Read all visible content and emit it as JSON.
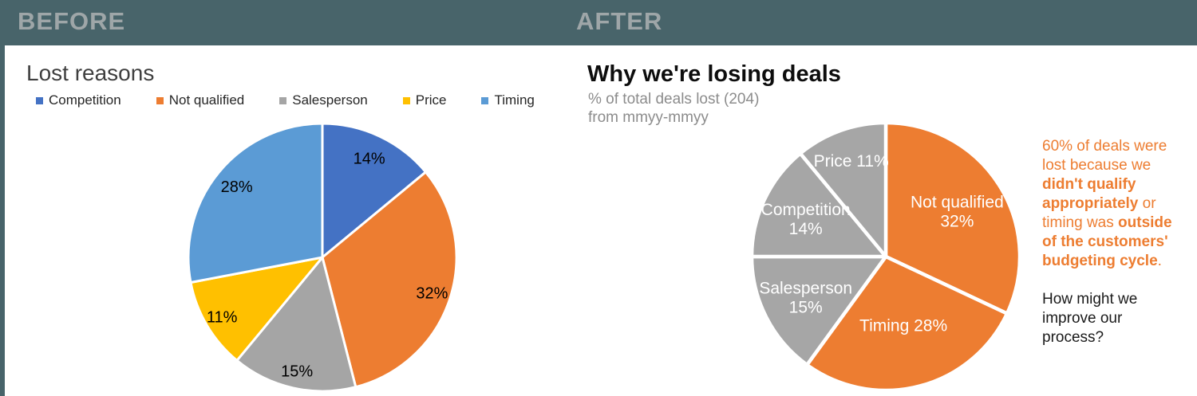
{
  "header": {
    "before_label": "BEFORE",
    "after_label": "AFTER",
    "bar_color": "#48646a",
    "label_color": "#9ea6a8"
  },
  "before_panel": {
    "title": "Lost reasons"
  },
  "after_panel": {
    "title": "Why we're losing deals",
    "subtitle": [
      "% of total deals lost (204)",
      "from mmyy-mmyy"
    ],
    "annotation": {
      "color": "#ED7D31",
      "segments": [
        {
          "text": "60% of deals were lost because we ",
          "bold": false
        },
        {
          "text": "didn't qualify appropriately",
          "bold": true
        },
        {
          "text": " or timing was ",
          "bold": false
        },
        {
          "text": "outside of the customers' budgeting cycle",
          "bold": true
        },
        {
          "text": ".",
          "bold": false
        }
      ],
      "question": "How might we improve our process?"
    }
  },
  "chart_data": [
    {
      "id": "before",
      "type": "pie",
      "title": "Lost reasons",
      "start_angle": 0,
      "direction": "clockwise-from-top",
      "legend_position": "top",
      "gap_stroke": 3,
      "label_color": "#000000",
      "label_size": 20,
      "label_line_height": 22,
      "slices": [
        {
          "label": "Competition",
          "value": 14,
          "color": "#4472C4",
          "data_label": "14%",
          "label_r": 0.82
        },
        {
          "label": "Not qualified",
          "value": 32,
          "color": "#ED7D31",
          "data_label": "32%",
          "label_r": 0.86
        },
        {
          "label": "Salesperson",
          "value": 15,
          "color": "#A5A5A5",
          "data_label": "15%",
          "label_r": 0.87
        },
        {
          "label": "Price",
          "value": 11,
          "color": "#FFC000",
          "data_label": "11%",
          "label_r": 0.87
        },
        {
          "label": "Timing",
          "value": 28,
          "color": "#5B9BD5",
          "data_label": "28%",
          "label_r": 0.83
        }
      ]
    },
    {
      "id": "after",
      "type": "pie",
      "title": "Why we're losing deals",
      "subtitle": "% of total deals lost (204) from mmyy-mmyy",
      "total_deals": 204,
      "start_angle": 0,
      "direction": "clockwise-from-top",
      "legend_position": "none",
      "gap_stroke": 4.5,
      "label_color": "#ffffff",
      "label_size": 21,
      "label_line_height": 24,
      "slices": [
        {
          "label": "Not qualified",
          "value": 32,
          "color": "#ED7D31",
          "data_label": "Not qualified 32%",
          "label_lines": [
            "Not qualified",
            "32%"
          ],
          "label_r": 0.63
        },
        {
          "label": "Timing",
          "value": 28,
          "color": "#ED7D31",
          "data_label": "Timing 28%",
          "label_lines": [
            "Timing 28%"
          ],
          "label_r": 0.53
        },
        {
          "label": "Salesperson",
          "value": 15,
          "color": "#A6A6A6",
          "data_label": "Salesperson 15%",
          "label_lines": [
            "Salesperson",
            "15%"
          ],
          "label_r": 0.67
        },
        {
          "label": "Competition",
          "value": 14,
          "color": "#A6A6A6",
          "data_label": "Competition 14%",
          "label_lines": [
            "Competition",
            "14%"
          ],
          "label_r": 0.66
        },
        {
          "label": "Price",
          "value": 11,
          "color": "#A6A6A6",
          "data_label": "Price 11%",
          "label_lines": [
            "Price 11%"
          ],
          "label_r": 0.76
        }
      ]
    }
  ]
}
